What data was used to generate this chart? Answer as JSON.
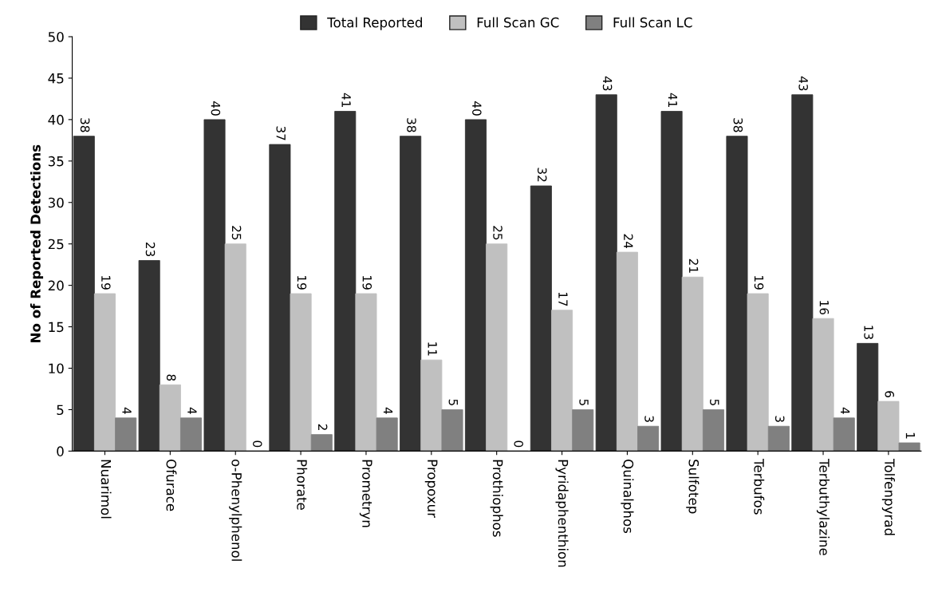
{
  "chart_data": {
    "type": "bar",
    "ylabel": "No of Reported Detections",
    "categories": [
      "Nuarimol",
      "Ofurace",
      "o-Phenylphenol",
      "Phorate",
      "Prometryn",
      "Propoxur",
      "Prothiophos",
      "Pyridaphenthion",
      "Quinalphos",
      "Sulfotep",
      "Terbufos",
      "Terbuthylazine",
      "Tolfenpyrad"
    ],
    "series": [
      {
        "name": "Total Reported",
        "color": "#333333",
        "values": [
          38,
          23,
          40,
          37,
          41,
          38,
          40,
          32,
          43,
          41,
          38,
          43,
          13
        ]
      },
      {
        "name": "Full Scan GC",
        "color": "#c0c0c0",
        "values": [
          19,
          8,
          25,
          19,
          19,
          11,
          25,
          17,
          24,
          21,
          19,
          16,
          6
        ]
      },
      {
        "name": "Full Scan LC",
        "color": "#808080",
        "values": [
          4,
          4,
          0,
          2,
          4,
          5,
          0,
          5,
          3,
          5,
          3,
          4,
          1
        ]
      }
    ],
    "ylim": [
      0,
      50
    ],
    "yticks": [
      0,
      5,
      10,
      15,
      20,
      25,
      30,
      35,
      40,
      45,
      50
    ],
    "data_labels": true,
    "grid": false,
    "legend": "top"
  }
}
